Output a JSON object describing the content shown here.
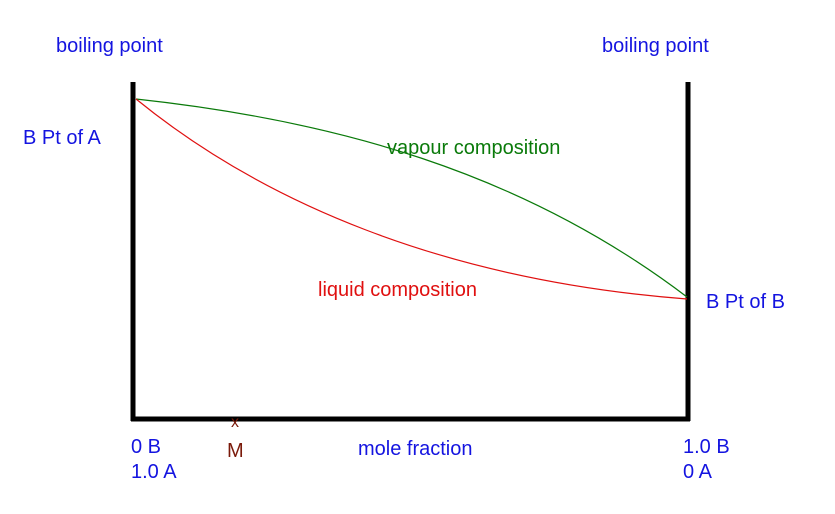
{
  "colors": {
    "axis": "#000000",
    "label_blue": "#1414e0",
    "vapour_green": "#0a7a0a",
    "liquid_red": "#e01010",
    "marker_brown": "#7a1a0a"
  },
  "labels": {
    "left_axis_title": "boiling point",
    "right_axis_title": "boiling point",
    "bp_a": "B Pt of A",
    "bp_b": "B Pt of B",
    "vapour_curve": "vapour composition",
    "liquid_curve": "liquid composition",
    "x_axis_title": "mole fraction",
    "left_end_b": "0 B",
    "left_end_a": "1.0 A",
    "right_end_b": "1.0 B",
    "right_end_a": "0 A",
    "marker_symbol": "x",
    "marker_label": "M"
  }
}
